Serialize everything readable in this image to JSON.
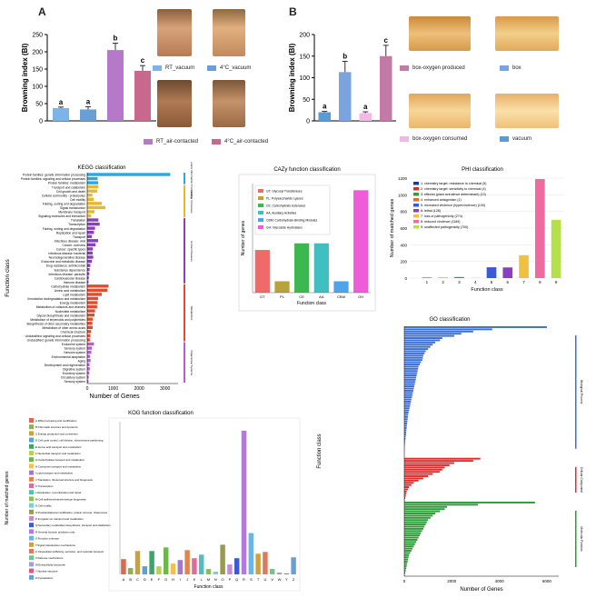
{
  "panels": {
    "A": {
      "letter": "A"
    },
    "B": {
      "letter": "B"
    }
  },
  "colors": {
    "rt_vacuum": "#7db3e8",
    "c4_vacuum": "#6a9fd4",
    "rt_air": "#b678c8",
    "c4_air": "#c9688d",
    "box_oxygen_produced": "#c27aa7",
    "box": "#7aa4dd",
    "box_oxygen_consumed": "#f3b8e6",
    "vacuum": "#5b9bd5"
  },
  "chart_data": [
    {
      "id": "A",
      "type": "bar",
      "ylabel": "Browning index (BI)",
      "ylim": [
        0,
        250
      ],
      "yticks": [
        "0",
        "50",
        "100",
        "150",
        "200",
        "250"
      ],
      "categories": [
        "RT_vacuum",
        "4°C_vacuum",
        "RT_air-contacted",
        "4°C_air-contacted"
      ],
      "values": [
        37,
        33,
        205,
        145
      ],
      "errors": [
        3,
        8,
        20,
        15
      ],
      "letters": [
        "a",
        "a",
        "b",
        "c"
      ],
      "legend": [
        "RT_vacuum",
        "4°C_vacuum",
        "RT_air-contacted",
        "4°C_air-contacted"
      ]
    },
    {
      "id": "B",
      "type": "bar",
      "ylabel": "Browning index (BI)",
      "ylim": [
        0,
        200
      ],
      "yticks": [
        "0",
        "50",
        "100",
        "150",
        "200"
      ],
      "categories": [
        "vacuum",
        "box",
        "box-oxygen consumed",
        "box-oxygen produced"
      ],
      "values": [
        20,
        113,
        18,
        150
      ],
      "errors": [
        2,
        25,
        3,
        25
      ],
      "letters": [
        "a",
        "b",
        "a",
        "c"
      ],
      "legend": [
        "box-oxygen produced",
        "box",
        "box-oxygen consumed",
        "vacuum"
      ]
    },
    {
      "id": "KEGG",
      "type": "bar",
      "title": "KEGG classification",
      "xlabel": "Number of Genes",
      "ylabel": "Function class",
      "xticks": [
        "0",
        "1000",
        "2000",
        "3000"
      ],
      "xlim": [
        0,
        3500
      ],
      "categories": [
        "Protein families: genetic information processing",
        "Protein families: signaling and cellular processes",
        "Protein families: metabolism",
        "Transport and catabolism",
        "Cell growth and death",
        "Cellular community - prokaryotes",
        "Cell motility",
        "Folding, sorting and degradation",
        "Signal transduction",
        "Membrane transport",
        "Signaling molecules and interaction",
        "Translation",
        "Transcription",
        "Folding, sorting and degradation",
        "Replication and repair",
        "Transport",
        "Infectious disease: viral",
        "Cancer: overview",
        "Cancer: specific types",
        "Infectious disease: bacterial",
        "Neurodegenerative disease",
        "Endocrine and metabolic disease",
        "Drug resistance: antimicrobial",
        "Substance dependence",
        "Infectious disease: parasitic",
        "Cardiovascular disease",
        "Immune disease",
        "Carbohydrate metabolism",
        "Amino acid metabolism",
        "Lipid metabolism",
        "Xenobiotics biodegradation and metabolism",
        "Energy metabolism",
        "Metabolism of cofactors and vitamins",
        "Nucleotide metabolism",
        "Glycan biosynthesis and metabolism",
        "Metabolism of terpenoids and polyketides",
        "Biosynthesis of other secondary metabolites",
        "Metabolism of other amino acids",
        "Chemical structure",
        "Unclassified: signaling and cellular processes",
        "Unclassified: genetic information processing",
        "Endocrine system",
        "Sensory system",
        "Nervous system",
        "Environmental adaptation",
        "Aging",
        "Development and regeneration",
        "Digestive system",
        "Excretory system",
        "Circulatory system",
        "Sensory system"
      ],
      "values": [
        3200,
        400,
        420,
        430,
        380,
        200,
        250,
        560,
        700,
        280,
        150,
        430,
        480,
        300,
        260,
        180,
        420,
        320,
        220,
        210,
        230,
        180,
        120,
        90,
        80,
        60,
        50,
        820,
        780,
        560,
        420,
        400,
        380,
        300,
        280,
        220,
        200,
        210,
        150,
        120,
        100,
        260,
        180,
        160,
        110,
        130,
        90,
        100,
        80,
        60,
        50
      ],
      "group_colors": [
        "#29a9e0",
        "#e8b730",
        "#8a3fbf",
        "#e24b2b",
        "#b85cd6"
      ],
      "groups": [
        "Genetic Information Processing",
        "Cellular Processes",
        "Human Diseases",
        "Metabolism",
        "Organismal Systems"
      ]
    },
    {
      "id": "CAZy",
      "type": "bar",
      "title": "CAZy function classification",
      "xlabel": "Function class",
      "ylabel": "Number of genes",
      "categories": [
        "GT",
        "PL",
        "CE",
        "AA",
        "CBM",
        "GH"
      ],
      "values": [
        45,
        12,
        52,
        52,
        12,
        108
      ],
      "colors": [
        "#f06a6a",
        "#b8a23c",
        "#3bb84f",
        "#3fbfbf",
        "#4fa3e8",
        "#ef5cd8"
      ],
      "legend": [
        "GT: Glycosyl Transferases",
        "PL: Polysaccharide Lyases",
        "CE: Carbohydrate Esterases",
        "AA: Auxiliary Activities",
        "CBM: Carbohydrate-Binding Modules",
        "GH: Glycoside Hydrolases"
      ]
    },
    {
      "id": "PHI",
      "type": "bar",
      "title": "PHI classification",
      "xlabel": "Function class",
      "ylabel": "Number of matched genes",
      "yticks": [
        "0",
        "200",
        "400",
        "600",
        "800",
        "1000",
        "1200"
      ],
      "ylim": [
        0,
        1200
      ],
      "categories": [
        "1",
        "2",
        "3",
        "4",
        "5",
        "6",
        "7",
        "8",
        "9"
      ],
      "values": [
        5,
        4,
        13,
        1,
        130,
        128,
        274,
        1189,
        700
      ],
      "colors": [
        "#1f3b8a",
        "#d0312d",
        "#3a9b3a",
        "#e06a2a",
        "#3b5bd6",
        "#8a3fbf",
        "#f0c040",
        "#ef6aa0",
        "#b5e04a"
      ],
      "legend": [
        "1: chemistry target: resistance to chemical (5)",
        "2: chemistry target: sensitivity to chemical (4)",
        "3: effector (plant avirulence determinant) (13)",
        "4: enhanced antagonism (1)",
        "5: increased virulence (hypervirulence) (130)",
        "6: lethal (128)",
        "7: loss of pathogenicity (274)",
        "8: reduced virulence (1189)",
        "9: unaffected pathogenicity (700)"
      ]
    },
    {
      "id": "KOG",
      "type": "bar",
      "title": "KOG function classification",
      "xlabel": "Function class",
      "ylabel": "Number of matched genes",
      "categories": [
        "A",
        "B",
        "C",
        "D",
        "E",
        "F",
        "G",
        "H",
        "I",
        "J",
        "K",
        "L",
        "M",
        "N",
        "O",
        "P",
        "Q",
        "R",
        "S",
        "T",
        "U",
        "V",
        "W",
        "Y",
        "Z"
      ],
      "values": [
        170,
        70,
        260,
        90,
        260,
        90,
        300,
        120,
        160,
        270,
        180,
        220,
        60,
        30,
        330,
        110,
        180,
        1600,
        460,
        230,
        250,
        60,
        20,
        10,
        190
      ],
      "legend": [
        "A:RNA processing and modification",
        "B:Chromatin structure and dynamics",
        "C:Energy production and conversion",
        "D:Cell cycle control, cell division, chromosome partitioning",
        "E:Amino acid transport and metabolism",
        "F:Nucleotide transport and metabolism",
        "G:Carbohydrate transport and metabolism",
        "H:Coenzyme transport and metabolism",
        "I:Lipid transport and metabolism",
        "J:Translation, ribosomal structure and biogenesis",
        "K:Transcription",
        "L:Replication, recombination and repair",
        "M:Cell wall/membrane/envelope biogenesis",
        "N:Cell motility",
        "O:Posttranslational modification, protein turnover, chaperones",
        "P:Inorganic ion transport and metabolism",
        "Q:Secondary metabolites biosynthesis, transport and catabolism",
        "R:General function prediction only",
        "S:Function unknown",
        "T:Signal transduction mechanisms",
        "U:Intracellular trafficking, secretion, and vesicular transport",
        "V:Defense mechanisms",
        "W:Extracellular structures",
        "Y:Nuclear structure",
        "Z:Cytoskeleton"
      ]
    },
    {
      "id": "GO",
      "type": "bar",
      "title": "GO classification",
      "xlabel": "Number of Genes",
      "ylabel": "Function class",
      "xticks": [
        "0",
        "2000",
        "4000",
        "6000"
      ],
      "xlim": [
        0,
        6500
      ],
      "groups": [
        "Biological Process",
        "Cellular Component",
        "Molecular Function"
      ],
      "group_colors": [
        "#3b6fd6",
        "#e22b2b",
        "#2e9b3a"
      ],
      "bp_values": [
        6000,
        3700,
        2900,
        2400,
        2100,
        1600,
        1500,
        1300,
        1200,
        1100,
        1000,
        900,
        850,
        800,
        780,
        760,
        700,
        650,
        600,
        580,
        560,
        540,
        520,
        500,
        480,
        460,
        440,
        420,
        400,
        380,
        360,
        340,
        320,
        300,
        280,
        260,
        240,
        220,
        200,
        180,
        160,
        150,
        140,
        130,
        120,
        110,
        100,
        90,
        80,
        70,
        60,
        50,
        40,
        30,
        20,
        15,
        10,
        8,
        5,
        3
      ],
      "cc_values": [
        3200,
        2900,
        2100,
        1900,
        1700,
        1600,
        1500,
        1200,
        1000,
        800,
        600,
        400,
        300,
        200,
        150,
        100,
        80,
        60,
        40,
        20
      ],
      "mf_values": [
        5500,
        3100,
        1800,
        1700,
        1500,
        1300,
        1200,
        1100,
        1000,
        950,
        900,
        850,
        800,
        750,
        700,
        650,
        600,
        550,
        500,
        450,
        400,
        350,
        300,
        250,
        200,
        180,
        160,
        140,
        120,
        100,
        80,
        60,
        40,
        20
      ]
    }
  ]
}
